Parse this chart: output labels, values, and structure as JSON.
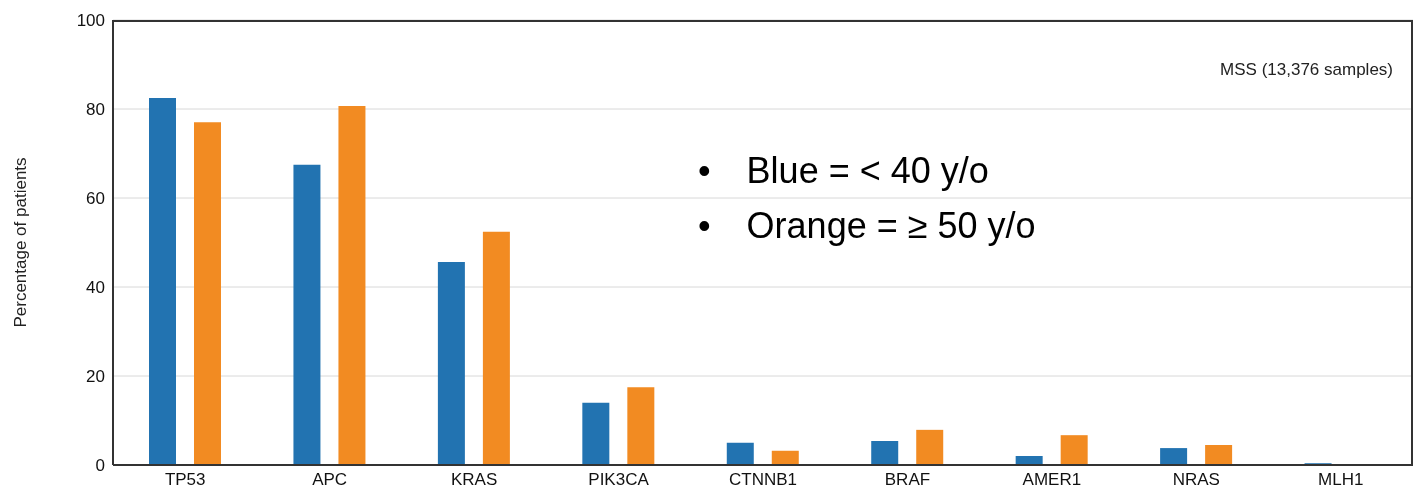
{
  "chart_data": {
    "type": "bar",
    "ylabel": "Percentage of patients",
    "categories": [
      "TP53",
      "APC",
      "KRAS",
      "PIK3CA",
      "CTNNB1",
      "BRAF",
      "AMER1",
      "NRAS",
      "MLH1"
    ],
    "series": [
      {
        "color": "#2273b1",
        "values": [
          82.5,
          67.5,
          45.6,
          14,
          5,
          5.4,
          2,
          3.8,
          0.4
        ]
      },
      {
        "color": "#f28b22",
        "values": [
          77,
          80.7,
          52.4,
          17.5,
          3.2,
          7.9,
          6.7,
          4.5,
          0
        ]
      }
    ],
    "ylim": [
      0,
      100
    ],
    "yticks": [
      0,
      20,
      40,
      60,
      80,
      100
    ],
    "grid": "y",
    "annotations": [
      "MSS (13,376 samples)",
      "• Blue = < 40 y/o",
      "• Orange = ≥ 50 y/o"
    ]
  }
}
